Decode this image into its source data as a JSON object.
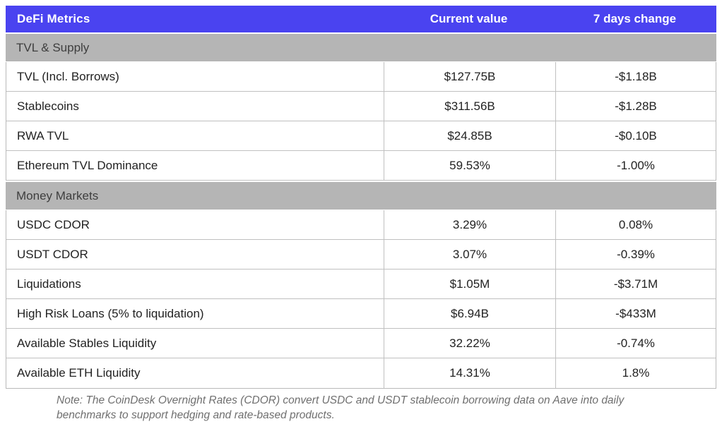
{
  "header": {
    "col_metric": "DeFi Metrics",
    "col_current": "Current value",
    "col_change": "7 days change"
  },
  "rows": [
    {
      "type": "section",
      "label": "TVL & Supply"
    },
    {
      "type": "data",
      "label": "TVL (Incl. Borrows)",
      "current": "$127.75B",
      "change": "-$1.18B"
    },
    {
      "type": "data",
      "label": "Stablecoins",
      "current": "$311.56B",
      "change": "-$1.28B"
    },
    {
      "type": "data",
      "label": "RWA TVL",
      "current": "$24.85B",
      "change": "-$0.10B"
    },
    {
      "type": "data",
      "label": "Ethereum TVL Dominance",
      "current": "59.53%",
      "change": "-1.00%"
    },
    {
      "type": "section",
      "label": "Money Markets"
    },
    {
      "type": "data",
      "label": "USDC CDOR",
      "current": "3.29%",
      "change": "0.08%"
    },
    {
      "type": "data",
      "label": "USDT CDOR",
      "current": "3.07%",
      "change": "-0.39%"
    },
    {
      "type": "data",
      "label": "Liquidations",
      "current": "$1.05M",
      "change": "-$3.71M"
    },
    {
      "type": "data",
      "label": "High Risk Loans (5% to liquidation)",
      "current": "$6.94B",
      "change": "-$433M"
    },
    {
      "type": "data",
      "label": "Available Stables Liquidity",
      "current": "32.22%",
      "change": "-0.74%"
    },
    {
      "type": "data",
      "label": "Available ETH Liquidity",
      "current": "14.31%",
      "change": "1.8%"
    }
  ],
  "note": "Note: The CoinDesk Overnight Rates (CDOR) convert USDC and USDT stablecoin borrowing data on Aave into daily benchmarks to support hedging and rate-based products.",
  "colors": {
    "header_bg": "#4a43f0",
    "header_text": "#ffffff",
    "section_bg": "#b5b5b5",
    "section_text": "#3e3e3e",
    "row_bg": "#ffffff",
    "row_text": "#222222",
    "border": "#c0c0c0",
    "note_text": "#6f6f6f"
  },
  "chart_data": {
    "type": "table",
    "title": "DeFi Metrics",
    "columns": [
      "DeFi Metrics",
      "Current value",
      "7 days change"
    ],
    "sections": [
      {
        "name": "TVL & Supply",
        "rows": [
          [
            "TVL (Incl. Borrows)",
            "$127.75B",
            "-$1.18B"
          ],
          [
            "Stablecoins",
            "$311.56B",
            "-$1.28B"
          ],
          [
            "RWA TVL",
            "$24.85B",
            "-$0.10B"
          ],
          [
            "Ethereum TVL Dominance",
            "59.53%",
            "-1.00%"
          ]
        ]
      },
      {
        "name": "Money Markets",
        "rows": [
          [
            "USDC CDOR",
            "3.29%",
            "0.08%"
          ],
          [
            "USDT CDOR",
            "3.07%",
            "-0.39%"
          ],
          [
            "Liquidations",
            "$1.05M",
            "-$3.71M"
          ],
          [
            "High Risk Loans (5% to liquidation)",
            "$6.94B",
            "-$433M"
          ],
          [
            "Available Stables Liquidity",
            "32.22%",
            "-0.74%"
          ],
          [
            "Available ETH Liquidity",
            "14.31%",
            "1.8%"
          ]
        ]
      }
    ],
    "footnote": "Note: The CoinDesk Overnight Rates (CDOR) convert USDC and USDT stablecoin borrowing data on Aave into daily benchmarks to support hedging and rate-based products."
  }
}
